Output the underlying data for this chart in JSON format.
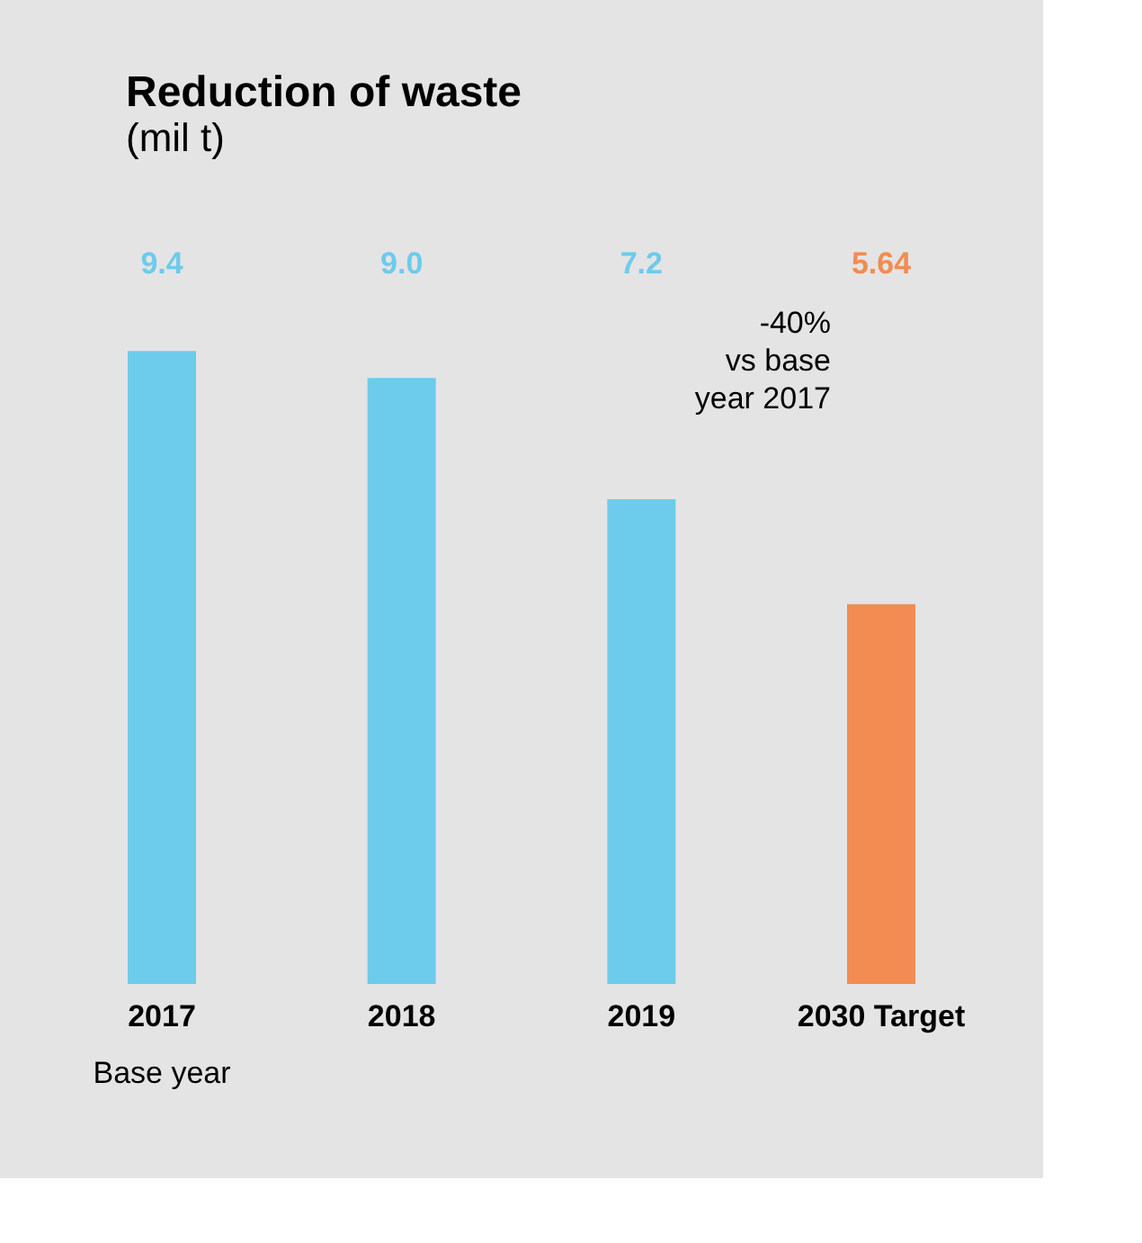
{
  "chart_data": {
    "type": "bar",
    "title": "Reduction of waste",
    "subtitle": "(mil t)",
    "categories": [
      "2017",
      "2018",
      "2019",
      "2030 Target"
    ],
    "values": [
      9.4,
      9.0,
      7.2,
      5.64
    ],
    "colors": [
      "#6dcbec",
      "#6dcbec",
      "#6dcbec",
      "#f28c52"
    ],
    "value_labels": [
      "9.4",
      "9.0",
      "7.2",
      "5.64"
    ],
    "annotations": [
      "Base year",
      "-40%\nvs base\nyear 2017"
    ]
  }
}
